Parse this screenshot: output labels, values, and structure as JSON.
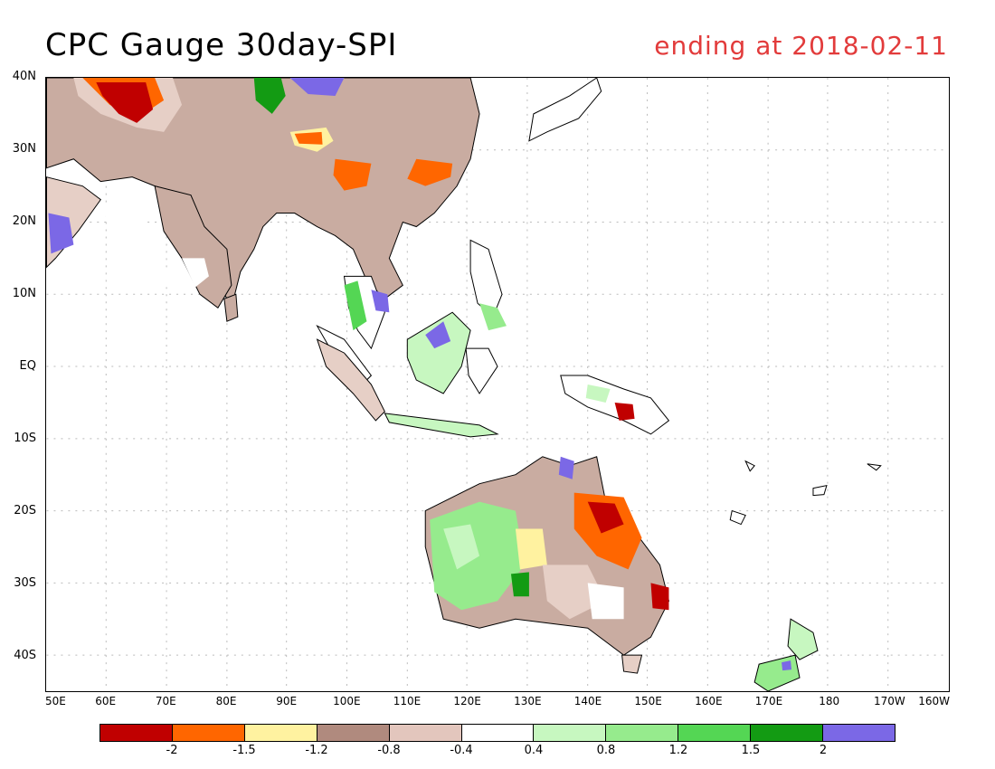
{
  "header": {
    "title": "CPC Gauge 30day-SPI",
    "ending": "ending at 2018-02-11"
  },
  "axes": {
    "lat_labels": [
      "40N",
      "30N",
      "20N",
      "10N",
      "EQ",
      "10S",
      "20S",
      "30S",
      "40S"
    ],
    "lon_labels": [
      "50E",
      "60E",
      "70E",
      "80E",
      "90E",
      "100E",
      "110E",
      "120E",
      "130E",
      "140E",
      "150E",
      "160E",
      "170E",
      "180",
      "170W",
      "160W"
    ]
  },
  "legend": {
    "colors": [
      "#c00000",
      "#ff6600",
      "#fff2a0",
      "#b08a7e",
      "#e3c6bd",
      "#ffffff",
      "#c7f7c0",
      "#96eb8d",
      "#54d654",
      "#139b13",
      "#7b68e6"
    ],
    "labels": [
      "-2",
      "-1.5",
      "-1.2",
      "-0.8",
      "-0.4",
      "0.4",
      "0.8",
      "1.2",
      "1.5",
      "2"
    ]
  }
}
